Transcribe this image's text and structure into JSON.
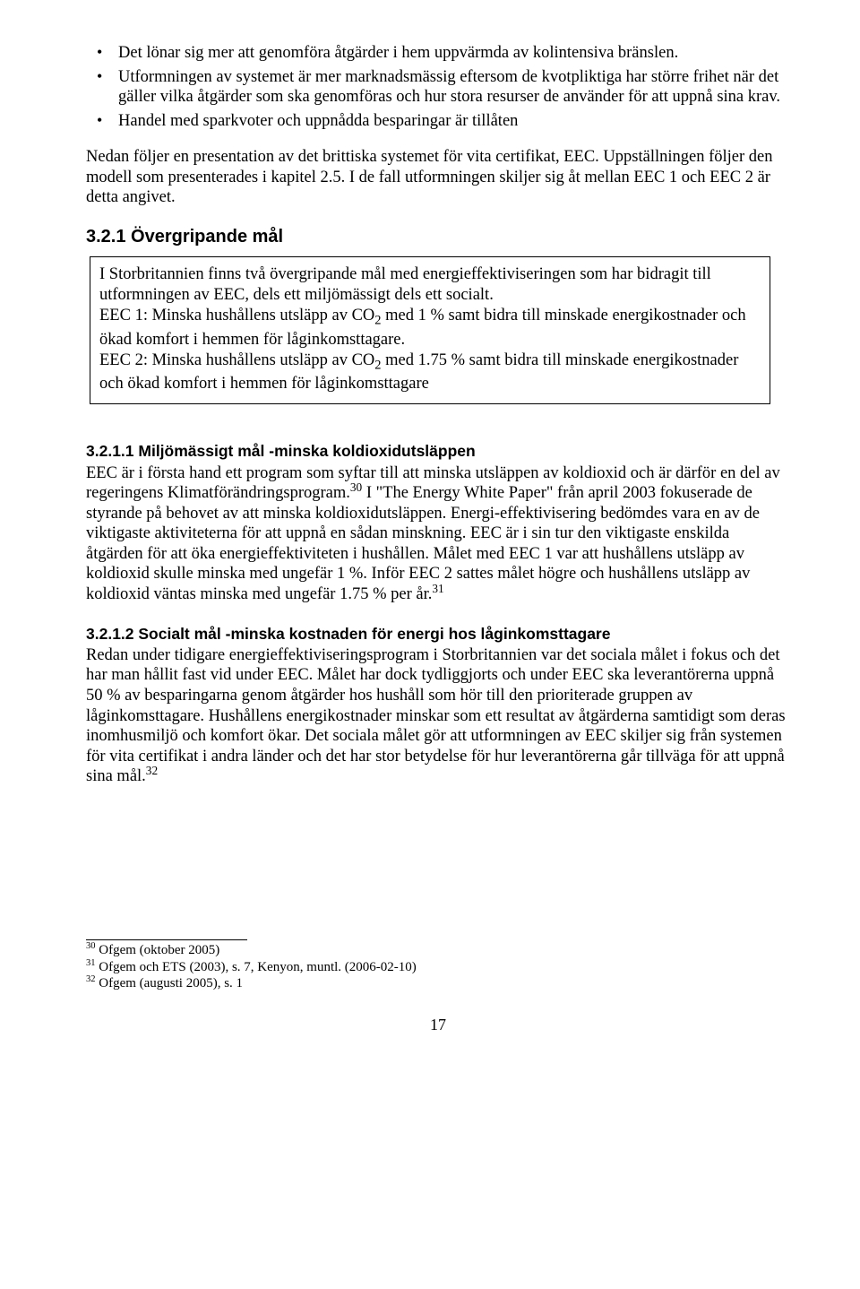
{
  "bullets": {
    "b1": "Det lönar sig mer att genomföra åtgärder i hem uppvärmda av kolintensiva bränslen.",
    "b2": "Utformningen av systemet är mer marknadsmässig eftersom de kvotpliktiga har större frihet när det gäller vilka åtgärder som ska genomföras och hur stora resurser de använder för att uppnå sina krav.",
    "b3": "Handel med sparkvoter och uppnådda besparingar är tillåten"
  },
  "intro": "Nedan följer en presentation av det brittiska systemet för vita certifikat, EEC. Uppställningen följer den modell som presenterades i kapitel 2.5. I de fall utformningen skiljer sig åt mellan EEC 1 och EEC 2 är detta angivet.",
  "h321": "3.2.1  Övergripande mål",
  "box": {
    "p1": "I Storbritannien finns två övergripande mål med energieffektiviseringen som har bidragit till utformningen av EEC, dels ett miljömässigt dels ett socialt.",
    "p2a": "EEC 1: Minska hushållens utsläpp av CO",
    "p2b": " med 1 % samt bidra till minskade energikostnader och ökad komfort i hemmen för låginkomsttagare.",
    "p3a": "EEC 2: Minska hushållens utsläpp av CO",
    "p3b": " med 1.75 % samt bidra till minskade energikostnader och ökad komfort i hemmen för låginkomsttagare"
  },
  "h3211": "3.2.1.1   Miljömässigt mål -minska koldioxidutsläppen",
  "p3211a": "EEC är i första hand ett program som syftar till att minska utsläppen av koldioxid och är därför en del av regeringens Klimatförändringsprogram.",
  "p3211b": " I \"The Energy White Paper\" från april 2003 fokuserade de styrande på behovet av att minska koldioxidutsläppen. Energi-effektivisering bedömdes vara en av de viktigaste aktiviteterna för att uppnå en sådan minskning. EEC är i sin tur den viktigaste enskilda åtgärden för att öka energieffektiviteten i hushållen. Målet med EEC 1 var att hushållens utsläpp av koldioxid skulle minska med ungefär 1 %. Inför EEC 2 sattes målet högre och hushållens utsläpp av koldioxid väntas minska med ungefär 1.75 % per år.",
  "h3212": "3.2.1.2   Socialt mål -minska kostnaden för energi hos låginkomsttagare",
  "p3212": "Redan under tidigare energieffektiviseringsprogram i Storbritannien var det sociala målet i fokus och det har man hållit fast vid under EEC. Målet har dock tydliggjorts och under EEC ska leverantörerna uppnå 50 % av besparingarna genom åtgärder hos hushåll som hör till den prioriterade gruppen av låginkomsttagare. Hushållens energikostnader minskar som ett resultat av åtgärderna samtidigt som deras inomhusmiljö och komfort ökar. Det sociala målet gör att utformningen av EEC skiljer sig från systemen för vita certifikat i andra länder och det har stor betydelse för hur leverantörerna går tillväga för att uppnå sina mål.",
  "fn": {
    "n30": "30",
    "t30": " Ofgem (oktober 2005)",
    "n31": "31",
    "t31": " Ofgem och ETS (2003), s. 7, Kenyon, muntl. (2006-02-10)",
    "n32": "32",
    "t32": " Ofgem (augusti 2005), s. 1"
  },
  "pagenum": "17",
  "sub2": "2",
  "sup30": "30",
  "sup31": "31",
  "sup32": "32"
}
